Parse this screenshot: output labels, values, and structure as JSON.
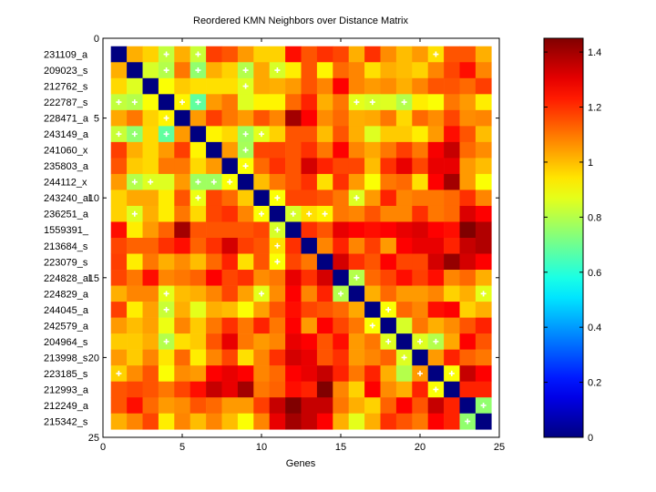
{
  "chart_data": {
    "type": "heatmap",
    "title": "Reordered KMN Neighbors over Distance Matrix",
    "xlabel": "Genes",
    "ylabel": "",
    "xlim": [
      0,
      25
    ],
    "ylim": [
      0,
      25
    ],
    "x_ticks": [
      "0",
      "5",
      "10",
      "15",
      "20",
      "25"
    ],
    "y_ticks": [
      "0",
      "5",
      "10",
      "15",
      "20",
      "25"
    ],
    "row_labels": [
      "231109_a",
      "209023_s",
      "212762_s",
      "222787_s",
      "228471_a",
      "243149_a",
      "241060_x",
      "235803_a",
      "244112_x",
      "243240_al",
      "236251_a",
      "1559391_",
      "213684_s",
      "223079_s",
      "224828_al",
      "224829_a",
      "244045_a",
      "242579_a",
      "204964_s",
      "213998_s",
      "223185_s",
      "212993_a",
      "212249_a",
      "215342_s"
    ],
    "colormap": "jet",
    "clim": [
      0,
      1.45
    ],
    "colorbar_ticks": [
      "0",
      "0.2",
      "0.4",
      "0.6",
      "0.8",
      "1",
      "1.2",
      "1.4"
    ],
    "colorbar_location": "right",
    "values": [
      [
        0,
        1.02,
        0.97,
        0.82,
        1.02,
        0.83,
        1.18,
        1.15,
        1.05,
        0.97,
        0.97,
        1.25,
        1.15,
        1.2,
        1.17,
        1.02,
        1.2,
        1.07,
        1.0,
        1.05,
        0.95,
        1.15,
        1.15,
        1.02
      ],
      [
        1.02,
        0,
        0.85,
        0.8,
        1.1,
        0.75,
        1.02,
        0.97,
        0.8,
        1.03,
        0.85,
        0.93,
        1.15,
        0.92,
        1.12,
        1.08,
        0.95,
        1.02,
        1.0,
        0.97,
        1.08,
        1.17,
        1.25,
        1.08
      ],
      [
        0.96,
        0.86,
        0,
        0.9,
        0.98,
        0.95,
        0.95,
        0.95,
        0.86,
        1.03,
        1.02,
        1.05,
        1.15,
        1.08,
        1.27,
        1.08,
        1.05,
        1.07,
        1.02,
        1.08,
        1.15,
        1.15,
        1.12,
        1.18
      ],
      [
        0.82,
        0.8,
        0.9,
        0,
        0.92,
        0.68,
        1.05,
        1.1,
        0.86,
        0.92,
        0.92,
        1.12,
        1.22,
        1.02,
        1.1,
        0.87,
        0.85,
        0.86,
        0.8,
        0.93,
        0.9,
        1.1,
        1.05,
        0.93
      ],
      [
        1.03,
        1.1,
        0.97,
        0.92,
        0,
        1.05,
        1.18,
        1.1,
        1.05,
        1.15,
        1.08,
        1.4,
        1.27,
        1.07,
        1.12,
        1.02,
        1.03,
        1.1,
        0.96,
        1.12,
        1.07,
        1.17,
        1.07,
        1.08
      ],
      [
        0.83,
        0.75,
        0.96,
        0.68,
        1.05,
        0,
        0.92,
        0.96,
        0.77,
        0.87,
        0.97,
        1.15,
        1.15,
        1.0,
        1.15,
        1.02,
        0.86,
        0.98,
        0.98,
        0.93,
        1.05,
        1.25,
        1.15,
        1.0
      ],
      [
        1.18,
        1.02,
        0.96,
        1.05,
        1.18,
        0.92,
        0,
        1.05,
        0.78,
        1.17,
        1.17,
        1.15,
        1.2,
        1.1,
        1.27,
        1.08,
        1.03,
        1.1,
        1.18,
        1.1,
        1.28,
        1.35,
        1.12,
        1.07
      ],
      [
        1.15,
        0.98,
        0.96,
        1.1,
        1.1,
        0.96,
        1.05,
        0,
        0.9,
        1.12,
        1.2,
        1.15,
        1.33,
        1.22,
        1.17,
        1.17,
        1.0,
        1.2,
        1.3,
        1.17,
        1.3,
        1.3,
        1.05,
        1.0
      ],
      [
        1.05,
        0.8,
        0.86,
        0.86,
        1.05,
        0.77,
        0.77,
        0.9,
        0,
        1.0,
        1.1,
        1.15,
        1.2,
        0.95,
        1.2,
        1.05,
        0.9,
        1.1,
        1.12,
        0.95,
        1.27,
        1.4,
        1.05,
        0.9
      ],
      [
        0.97,
        1.03,
        1.03,
        0.93,
        1.15,
        0.88,
        1.17,
        1.12,
        0.98,
        0,
        0.9,
        1.17,
        1.17,
        1.15,
        1.1,
        0.86,
        1.05,
        1.22,
        1.08,
        1.1,
        1.1,
        1.12,
        1.2,
        1.08
      ],
      [
        0.97,
        0.86,
        1.02,
        0.93,
        1.1,
        0.96,
        1.17,
        1.2,
        1.08,
        0.9,
        0,
        0.85,
        0.95,
        0.92,
        1.1,
        1.08,
        1.15,
        1.08,
        1.08,
        1.2,
        1.1,
        1.12,
        1.32,
        1.27
      ],
      [
        1.25,
        0.93,
        1.05,
        1.13,
        1.4,
        1.15,
        1.15,
        1.15,
        1.15,
        1.17,
        0.85,
        0,
        1.2,
        1.15,
        1.3,
        1.27,
        1.25,
        1.27,
        1.3,
        1.32,
        1.27,
        1.25,
        1.45,
        1.38
      ],
      [
        1.17,
        1.13,
        1.13,
        1.2,
        1.25,
        1.13,
        1.2,
        1.33,
        1.18,
        1.15,
        0.95,
        1.2,
        0,
        1.08,
        1.22,
        1.08,
        1.18,
        1.05,
        1.27,
        1.3,
        1.3,
        1.22,
        1.35,
        1.38
      ],
      [
        1.18,
        0.93,
        1.1,
        1.02,
        1.07,
        1.0,
        1.12,
        1.22,
        0.95,
        1.15,
        0.9,
        1.17,
        1.1,
        0,
        1.33,
        1.2,
        1.15,
        1.27,
        1.17,
        1.17,
        1.33,
        1.42,
        1.33,
        1.27
      ],
      [
        1.17,
        1.1,
        1.25,
        1.08,
        1.1,
        1.13,
        1.27,
        1.17,
        1.2,
        1.07,
        1.1,
        1.3,
        1.2,
        1.33,
        0,
        0.8,
        1.12,
        1.17,
        1.25,
        1.18,
        1.25,
        1.08,
        1.12,
        1.02
      ],
      [
        1.02,
        1.08,
        1.08,
        0.87,
        1.0,
        1.02,
        1.08,
        1.17,
        1.04,
        0.87,
        1.07,
        1.27,
        1.08,
        1.22,
        0.8,
        0,
        1.02,
        1.12,
        1.05,
        1.05,
        1.08,
        0.97,
        1.02,
        0.87
      ],
      [
        1.18,
        0.93,
        1.04,
        0.83,
        1.02,
        0.87,
        1.02,
        1.0,
        0.9,
        1.04,
        1.15,
        1.25,
        1.17,
        1.15,
        1.12,
        1.03,
        0,
        0.9,
        1.12,
        1.08,
        1.25,
        1.27,
        0.97,
        1.02
      ],
      [
        1.05,
        1.0,
        1.04,
        0.88,
        1.08,
        0.98,
        1.1,
        1.2,
        1.1,
        1.22,
        1.1,
        1.27,
        1.05,
        1.27,
        1.17,
        1.1,
        0.9,
        0,
        0.85,
        1.1,
        1.02,
        1.07,
        1.15,
        1.22
      ],
      [
        0.98,
        0.98,
        1.02,
        0.8,
        0.95,
        0.98,
        1.15,
        1.3,
        1.1,
        1.05,
        1.08,
        1.3,
        1.27,
        1.15,
        1.25,
        1.05,
        1.1,
        0.86,
        0,
        0.86,
        0.8,
        1.03,
        1.27,
        1.15
      ],
      [
        1.05,
        0.98,
        1.08,
        0.94,
        1.12,
        0.93,
        1.08,
        1.17,
        0.95,
        1.08,
        1.2,
        1.33,
        1.3,
        1.15,
        1.2,
        1.05,
        1.08,
        1.13,
        0.86,
        0,
        1.05,
        1.22,
        1.13,
        1.1
      ],
      [
        0.97,
        1.07,
        1.15,
        0.9,
        1.07,
        1.05,
        1.27,
        1.3,
        1.27,
        1.08,
        1.12,
        1.27,
        1.3,
        1.35,
        1.22,
        1.1,
        1.22,
        1.02,
        0.8,
        1.05,
        0,
        0.9,
        1.35,
        1.27
      ],
      [
        1.15,
        1.17,
        1.15,
        1.1,
        1.17,
        1.25,
        1.35,
        1.3,
        1.4,
        1.1,
        1.13,
        1.25,
        1.22,
        1.45,
        1.08,
        0.97,
        1.27,
        1.07,
        1.02,
        1.22,
        0.9,
        0,
        1.22,
        1.22
      ],
      [
        1.15,
        1.25,
        1.12,
        1.05,
        1.07,
        1.15,
        1.12,
        1.05,
        1.05,
        1.18,
        1.35,
        1.45,
        1.35,
        1.35,
        1.1,
        1.02,
        0.97,
        1.13,
        1.27,
        1.15,
        1.35,
        1.22,
        0,
        0.75
      ],
      [
        1.02,
        1.08,
        1.17,
        0.93,
        1.08,
        1.0,
        1.08,
        1.0,
        0.9,
        1.08,
        1.3,
        1.4,
        1.35,
        1.27,
        1.02,
        0.87,
        1.02,
        1.2,
        1.15,
        1.1,
        1.27,
        1.22,
        0.75,
        0
      ]
    ],
    "neighbor_marks": [
      [
        1,
        4
      ],
      [
        1,
        6
      ],
      [
        1,
        21
      ],
      [
        2,
        4
      ],
      [
        2,
        6
      ],
      [
        2,
        9
      ],
      [
        2,
        11
      ],
      [
        3,
        9
      ],
      [
        4,
        1
      ],
      [
        4,
        2
      ],
      [
        4,
        5
      ],
      [
        4,
        6
      ],
      [
        4,
        16
      ],
      [
        4,
        17
      ],
      [
        4,
        19
      ],
      [
        5,
        4
      ],
      [
        6,
        1
      ],
      [
        6,
        2
      ],
      [
        6,
        4
      ],
      [
        6,
        9
      ],
      [
        6,
        10
      ],
      [
        7,
        9
      ],
      [
        8,
        9
      ],
      [
        9,
        2
      ],
      [
        9,
        3
      ],
      [
        9,
        6
      ],
      [
        9,
        7
      ],
      [
        9,
        8
      ],
      [
        10,
        6
      ],
      [
        10,
        11
      ],
      [
        10,
        16
      ],
      [
        11,
        2
      ],
      [
        11,
        10
      ],
      [
        11,
        12
      ],
      [
        11,
        13
      ],
      [
        11,
        14
      ],
      [
        12,
        11
      ],
      [
        13,
        11
      ],
      [
        14,
        11
      ],
      [
        15,
        16
      ],
      [
        16,
        4
      ],
      [
        16,
        10
      ],
      [
        16,
        15
      ],
      [
        16,
        24
      ],
      [
        17,
        4
      ],
      [
        17,
        18
      ],
      [
        18,
        17
      ],
      [
        19,
        4
      ],
      [
        19,
        18
      ],
      [
        19,
        20
      ],
      [
        19,
        21
      ],
      [
        20,
        19
      ],
      [
        21,
        1
      ],
      [
        21,
        20
      ],
      [
        21,
        22
      ],
      [
        22,
        21
      ],
      [
        23,
        24
      ],
      [
        24,
        23
      ]
    ]
  }
}
